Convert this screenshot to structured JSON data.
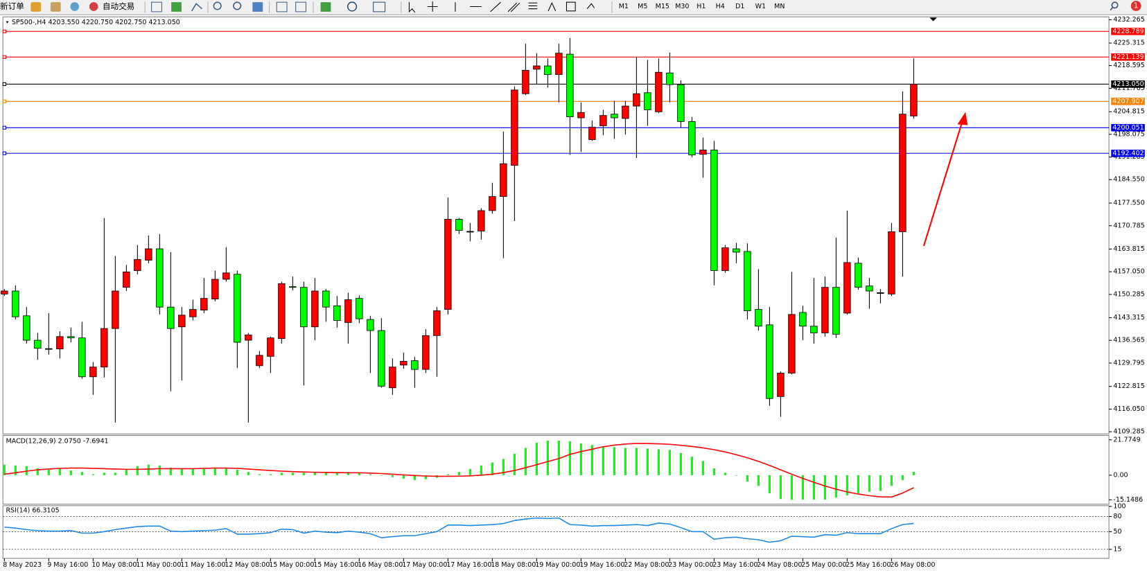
{
  "toolbar": {
    "new_order": "新订单",
    "auto_trading": "自动交易",
    "timeframes": [
      "M1",
      "M5",
      "M15",
      "M30",
      "H1",
      "H4",
      "D1",
      "W1",
      "MN"
    ],
    "notifications": "1"
  },
  "chart_data": [
    {
      "type": "candlestick",
      "title": "SP500-,H4 4203.550 4220.750 4202.750 4213.050",
      "up_color": "#ff0000",
      "down_color": "#00ff00",
      "doji_color": "#000000",
      "ylim": [
        4109.285,
        4232.265
      ],
      "yticks": [
        4232.265,
        4225.315,
        4218.595,
        4211.765,
        4204.815,
        4198.075,
        4191.285,
        {
          "value": 4184.55,
          "label": "4184.550"
        },
        {
          "value": 4177.55,
          "label": "4177.550"
        },
        4170.785,
        4163.815,
        {
          "value": 4157.05,
          "label": "4157.050"
        },
        4150.285,
        4143.315,
        4136.565,
        4129.795,
        4122.815,
        {
          "value": 4116.05,
          "label": "4116.050"
        },
        4109.285
      ],
      "levels": [
        {
          "value": 4228.789,
          "color": "#ff0000"
        },
        {
          "value": 4221.139,
          "color": "#ff0000"
        },
        {
          "value": 4213.05,
          "label": "4213.050",
          "color": "#000000"
        },
        {
          "value": 4207.907,
          "color": "#ff8000"
        },
        {
          "value": 4200.051,
          "color": "#0000ff"
        },
        {
          "value": 4192.402,
          "color": "#0000ff"
        }
      ],
      "categories": [
        "8 May 2023",
        null,
        null,
        null,
        "9 May 16:00",
        null,
        null,
        null,
        "10 May 08:00",
        null,
        null,
        null,
        "11 May 00:00",
        null,
        null,
        null,
        "11 May 16:00",
        null,
        null,
        null,
        "12 May 08:00",
        null,
        null,
        null,
        "15 May 00:00",
        null,
        null,
        null,
        "15 May 16:00",
        null,
        null,
        null,
        "16 May 08:00",
        null,
        null,
        null,
        "17 May 00:00",
        null,
        null,
        null,
        "17 May 16:00",
        null,
        null,
        null,
        "18 May 08:00",
        null,
        null,
        null,
        "19 May 00:00",
        null,
        null,
        null,
        "19 May 16:00",
        null,
        null,
        null,
        "22 May 08:00",
        null,
        null,
        null,
        "23 May 00:00",
        null,
        null,
        null,
        "23 May 16:00",
        null,
        null,
        null,
        "24 May 08:00",
        null,
        null,
        null,
        "25 May 00:00",
        null,
        null,
        null,
        "25 May 16:00",
        null,
        null,
        null,
        "26 May 08:00",
        null,
        null
      ],
      "open": [
        4150.4,
        4151.3,
        4143.9,
        4136.6,
        4134.1,
        4134.0,
        4137.7,
        4137.3,
        4125.7,
        4128.6,
        4140.1,
        4152.4,
        4157.4,
        4160.5,
        4163.9,
        4146.5,
        4140.6,
        4143.6,
        4145.6,
        4148.9,
        4154.8,
        4156.3,
        4136.6,
        4129.0,
        4131.8,
        4137.1,
        4152.6,
        4152.4,
        4140.6,
        4151.3,
        4146.9,
        4141.9,
        4149.1,
        4142.8,
        4139.5,
        4122.4,
        4129.2,
        4130.5,
        4127.9,
        4138.0,
        4145.8,
        4172.7,
        4169.1,
        4169.2,
        4175.3,
        4179.5,
        4188.8,
        4210.2,
        4217.5,
        4218.5,
        4215.9,
        4222.0,
        4203.0,
        4196.5,
        4200.6,
        4204.1,
        4202.8,
        4206.5,
        4210.5,
        4204.8,
        4216.4,
        4212.9,
        4201.9,
        4192.1,
        4193.4,
        4157.4,
        4163.9,
        4163.1,
        4145.8,
        4141.2,
        4119.8,
        4126.8,
        4144.9,
        4140.8,
        4138.8,
        4152.4,
        4144.7,
        4159.6,
        4152.8,
        4150.8,
        4150.4,
        4169.0,
        4203.55
      ],
      "high": [
        4151.9,
        4153.0,
        4146.5,
        4138.8,
        4144.7,
        4139.3,
        4140.4,
        4142.1,
        4130.1,
        4173.1,
        4161.8,
        4159.1,
        4165.0,
        4167.9,
        4168.3,
        4162.9,
        4146.5,
        4148.7,
        4155.2,
        4157.4,
        4164.4,
        4157.4,
        4138.8,
        4133.4,
        4137.7,
        4154.1,
        4155.6,
        4154.1,
        4155.2,
        4151.9,
        4149.8,
        4150.8,
        4150.0,
        4143.9,
        4143.2,
        4131.2,
        4132.9,
        4131.6,
        4139.9,
        4146.5,
        4179.2,
        4173.1,
        4171.6,
        4176.0,
        4183.6,
        4198.9,
        4212.4,
        4225.1,
        4222.3,
        4220.7,
        4225.1,
        4226.8,
        4207.6,
        4202.2,
        4205.4,
        4208.1,
        4208.1,
        4221.2,
        4220.3,
        4220.7,
        4222.5,
        4214.2,
        4203.3,
        4197.1,
        4196.1,
        4165.0,
        4165.7,
        4165.5,
        4157.8,
        4146.5,
        4127.3,
        4157.0,
        4146.9,
        4155.2,
        4155.6,
        4167.2,
        4175.3,
        4161.3,
        4155.2,
        4151.9,
        4171.6,
        4210.9,
        4220.75
      ],
      "low": [
        4149.8,
        4142.8,
        4135.6,
        4130.8,
        4132.3,
        4131.2,
        4136.0,
        4125.1,
        4120.3,
        4125.5,
        4112.0,
        4151.3,
        4156.3,
        4159.6,
        4144.3,
        4121.4,
        4124.6,
        4142.5,
        4144.7,
        4148.2,
        4154.1,
        4128.3,
        4112.0,
        4128.3,
        4126.8,
        4135.6,
        4151.5,
        4123.1,
        4136.6,
        4142.1,
        4140.4,
        4135.6,
        4141.7,
        4126.8,
        4122.4,
        4120.3,
        4128.1,
        4122.4,
        4126.8,
        4125.7,
        4144.3,
        4168.3,
        4166.1,
        4166.6,
        4174.4,
        4161.1,
        4172.2,
        4209.8,
        4213.1,
        4212.0,
        4207.6,
        4191.9,
        4192.8,
        4196.1,
        4197.8,
        4196.7,
        4198.0,
        4191.0,
        4200.6,
        4204.4,
        4207.6,
        4200.0,
        4191.2,
        4185.1,
        4153.0,
        4156.7,
        4159.6,
        4142.8,
        4139.5,
        4117.0,
        4113.7,
        4126.4,
        4136.6,
        4135.6,
        4137.7,
        4137.3,
        4144.3,
        4151.7,
        4146.0,
        4147.6,
        4149.8,
        4155.6,
        4202.75
      ],
      "close": [
        4151.3,
        4143.6,
        4136.6,
        4134.2,
        4134.1,
        4137.7,
        4137.3,
        4125.7,
        4128.6,
        4140.1,
        4151.3,
        4157.0,
        4160.7,
        4163.9,
        4146.5,
        4140.1,
        4144.1,
        4145.8,
        4149.1,
        4154.8,
        4156.7,
        4136.0,
        4138.2,
        4132.1,
        4137.3,
        4153.5,
        4152.4,
        4140.6,
        4151.3,
        4146.5,
        4142.5,
        4148.7,
        4143.0,
        4139.5,
        4122.9,
        4128.6,
        4130.3,
        4127.9,
        4138.0,
        4145.4,
        4172.7,
        4169.4,
        4169.1,
        4175.3,
        4179.5,
        4189.3,
        4211.3,
        4217.2,
        4218.5,
        4215.9,
        4222.3,
        4203.3,
        4204.6,
        4200.2,
        4203.7,
        4203.0,
        4206.5,
        4210.2,
        4205.4,
        4216.6,
        4212.9,
        4201.9,
        4191.9,
        4193.4,
        4157.4,
        4164.2,
        4162.9,
        4145.4,
        4140.8,
        4119.2,
        4126.8,
        4144.3,
        4140.8,
        4138.8,
        4152.4,
        4138.4,
        4159.8,
        4152.4,
        4151.3,
        4150.8,
        4169.0,
        4204.1,
        4213.05
      ]
    },
    {
      "type": "macd",
      "title": "MACD(12,26,9) 2.0750 -7.6941",
      "ylim": [
        -15.1486,
        21.7749
      ],
      "yticks": [
        21.7749,
        {
          "value": 0,
          "label": "0.00"
        },
        -15.1486
      ],
      "histogram": {
        "color": "#00ff00",
        "values": [
          6.5,
          6.0,
          5.6,
          4.2,
          3.3,
          4.2,
          2.9,
          2.0,
          0.6,
          1.5,
          1.5,
          3.8,
          5.6,
          6.5,
          6.0,
          4.7,
          4.2,
          3.8,
          3.8,
          4.7,
          4.2,
          3.3,
          2.0,
          0.6,
          0.6,
          1.5,
          1.5,
          1.5,
          2.0,
          2.0,
          1.5,
          2.0,
          1.5,
          0.6,
          -0.3,
          -1.2,
          -2.1,
          -3.0,
          -2.5,
          -1.6,
          0.6,
          2.0,
          3.8,
          6.0,
          7.8,
          10.0,
          13.2,
          16.8,
          20.0,
          21.3,
          21.3,
          20.9,
          19.5,
          18.6,
          17.7,
          17.3,
          16.8,
          16.8,
          16.4,
          15.9,
          15.5,
          13.7,
          11.4,
          8.7,
          4.2,
          1.5,
          -0.3,
          -3.9,
          -6.6,
          -11.1,
          -14.7,
          -15.1,
          -15.0,
          -15.0,
          -15.0,
          -13.8,
          -12.4,
          -11.1,
          -10.2,
          -9.7,
          -6.6,
          -3.0,
          2.075
        ]
      },
      "signal": {
        "color": "#ff0000",
        "values": [
          0.6,
          1.5,
          2.5,
          3.3,
          3.8,
          4.2,
          4.4,
          4.4,
          4.2,
          4.0,
          3.8,
          3.6,
          3.6,
          3.8,
          4.0,
          4.0,
          4.0,
          4.0,
          4.2,
          4.4,
          4.4,
          4.2,
          3.8,
          3.3,
          2.9,
          2.5,
          2.2,
          2.0,
          1.8,
          1.7,
          1.6,
          1.5,
          1.5,
          1.3,
          1.0,
          0.6,
          0.2,
          -0.2,
          -0.5,
          -0.7,
          -0.7,
          -0.6,
          -0.4,
          0.0,
          0.6,
          1.6,
          2.9,
          4.6,
          6.5,
          8.4,
          10.2,
          12.8,
          14.5,
          16.0,
          17.5,
          18.5,
          19.2,
          19.5,
          19.5,
          19.3,
          19.0,
          18.4,
          17.7,
          16.8,
          15.7,
          14.3,
          12.6,
          10.7,
          8.5,
          6.0,
          3.3,
          0.6,
          -2.0,
          -4.4,
          -6.6,
          -8.6,
          -10.3,
          -11.6,
          -12.6,
          -13.3,
          -13.4,
          -11.0,
          -7.6941
        ]
      }
    },
    {
      "type": "line",
      "title": "RSI(14) 66.3105",
      "color": "#1e88e5",
      "grid": "dashed",
      "ylim": [
        0,
        100
      ],
      "yticks": [
        100,
        80,
        50,
        15
      ],
      "values": [
        59,
        57,
        54,
        52,
        51,
        51,
        52,
        47,
        47,
        50,
        54,
        57,
        60,
        61,
        61,
        51,
        50,
        51,
        52,
        53,
        56,
        45,
        45,
        46,
        48,
        55,
        54,
        47,
        51,
        49,
        48,
        51,
        49,
        46,
        38,
        40,
        42,
        42,
        46,
        50,
        63,
        63,
        62,
        63,
        64,
        66,
        72,
        75,
        77,
        76,
        77,
        64,
        63,
        61,
        62,
        62,
        63,
        64,
        62,
        67,
        65,
        58,
        50,
        50,
        35,
        38,
        39,
        36,
        34,
        29,
        32,
        41,
        40,
        39,
        44,
        43,
        48,
        46,
        46,
        46,
        56,
        64,
        66.3105
      ]
    }
  ]
}
